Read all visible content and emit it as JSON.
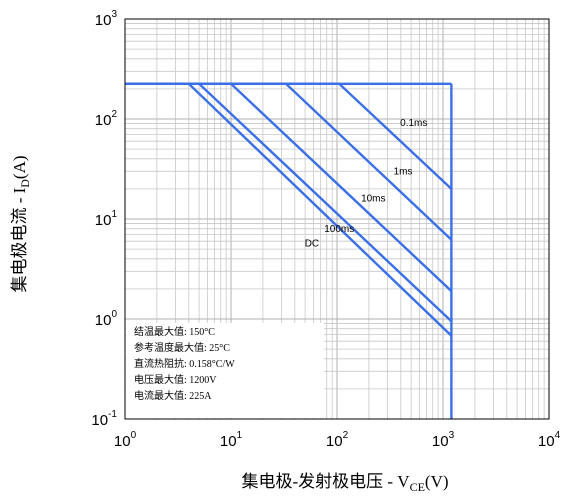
{
  "chart_data": {
    "type": "line",
    "scale": "log-log",
    "grid": true,
    "xlabel": {
      "prefix": "集电极-发射极电压 - V",
      "sub": "CE",
      "suffix": "(V)"
    },
    "ylabel": {
      "prefix": "集电极电流 - I",
      "sub": "D",
      "suffix": "(A)"
    },
    "xlim": [
      1,
      10000
    ],
    "ylim": [
      0.1,
      1000
    ],
    "x_ticks": [
      {
        "base": "10",
        "exp": "0"
      },
      {
        "base": "10",
        "exp": "1"
      },
      {
        "base": "10",
        "exp": "2"
      },
      {
        "base": "10",
        "exp": "3"
      },
      {
        "base": "10",
        "exp": "4"
      }
    ],
    "y_ticks": [
      {
        "base": "10",
        "exp": "-1"
      },
      {
        "base": "10",
        "exp": "0"
      },
      {
        "base": "10",
        "exp": "1"
      },
      {
        "base": "10",
        "exp": "2"
      },
      {
        "base": "10",
        "exp": "3"
      }
    ],
    "current_limit_A": 225,
    "voltage_limit_V": 1200,
    "series": [
      {
        "name": "0.1ms",
        "x": [
          1,
          105,
          1200
        ],
        "y": [
          225,
          225,
          20
        ]
      },
      {
        "name": "1ms",
        "x": [
          1,
          33,
          1200
        ],
        "y": [
          225,
          225,
          6.2
        ]
      },
      {
        "name": "10ms",
        "x": [
          1,
          10,
          1200
        ],
        "y": [
          225,
          225,
          1.9
        ]
      },
      {
        "name": "100ms",
        "x": [
          1,
          5,
          1200
        ],
        "y": [
          225,
          225,
          0.95
        ]
      },
      {
        "name": "DC",
        "x": [
          1,
          4,
          1200
        ],
        "y": [
          225,
          225,
          0.68
        ]
      }
    ],
    "curve_labels": [
      {
        "text": "0.1ms",
        "x": 530,
        "y": 85
      },
      {
        "text": "1ms",
        "x": 420,
        "y": 28
      },
      {
        "text": "10ms",
        "x": 220,
        "y": 15
      },
      {
        "text": "100ms",
        "x": 105,
        "y": 7.4
      },
      {
        "text": "DC",
        "x": 58,
        "y": 5.3
      }
    ],
    "annotation_lines": [
      "结温最大值: 150°C",
      "参考温度最大值: 25°C",
      "直流热阻抗: 0.158°C/W",
      "电压最大值: 1200V",
      "电流最大值: 225A"
    ],
    "colors": {
      "curve": "#3a6fe8",
      "grid": "#c8c8c8",
      "axis": "#000000"
    }
  }
}
